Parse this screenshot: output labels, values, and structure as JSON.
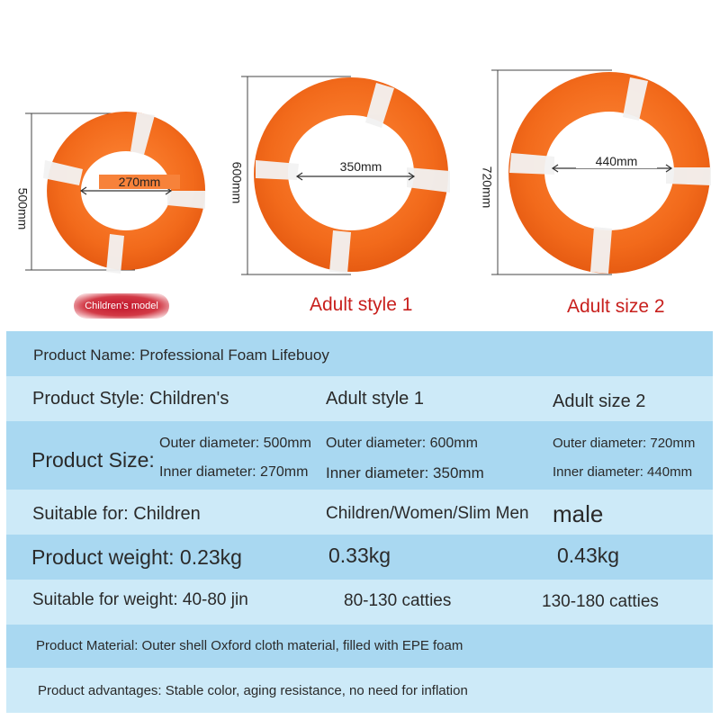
{
  "rings": [
    {
      "outer_dim": "500mm",
      "inner_dim": "270mm",
      "caption": "Children's model"
    },
    {
      "outer_dim": "600mm",
      "inner_dim": "350mm",
      "caption": "Adult style 1"
    },
    {
      "outer_dim": "720mm",
      "inner_dim": "440mm",
      "caption": "Adult size 2"
    }
  ],
  "colors": {
    "ring_orange": "#f26a1b",
    "caption_red": "#c8201d",
    "row_dark": "#a9d8f1",
    "row_light": "#cdeaf8"
  },
  "table": {
    "product_name": "Product Name: Professional Foam Lifebuoy",
    "style": {
      "label": "Product Style: Children's",
      "col2": "Adult style 1",
      "col3": "Adult size 2"
    },
    "size": {
      "label": "Product Size:",
      "c1_outer": "Outer diameter: 500mm",
      "c1_inner": "Inner diameter: 270mm",
      "c2_outer": "Outer diameter: 600mm",
      "c2_inner": "Inner diameter: 350mm",
      "c3_outer": "Outer diameter: 720mm",
      "c3_inner": "Inner diameter: 440mm"
    },
    "suitable": {
      "label": "Suitable for: Children",
      "col2": "Children/Women/Slim Men",
      "col3": "male"
    },
    "weight": {
      "label": "Product weight: 0.23kg",
      "col2": "0.33kg",
      "col3": "0.43kg"
    },
    "suitable_weight": {
      "label": "Suitable for weight: 40-80 jin",
      "col2": "80-130 catties",
      "col3": "130-180 catties"
    },
    "material": "Product Material: Outer shell Oxford cloth material, filled with EPE foam",
    "advantages": "Product advantages: Stable color, aging resistance, no need for inflation"
  }
}
